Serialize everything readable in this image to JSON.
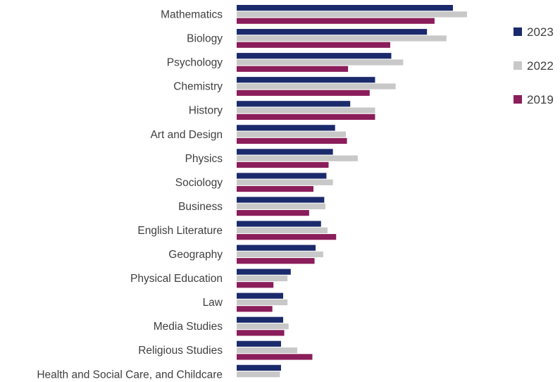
{
  "chart_data": {
    "type": "bar",
    "orientation": "horizontal",
    "title": "",
    "xlabel": "",
    "ylabel": "",
    "grid": false,
    "legend_position": "right",
    "categories": [
      "Mathematics",
      "Biology",
      "Psychology",
      "Chemistry",
      "History",
      "Art and Design",
      "Physics",
      "Sociology",
      "Business",
      "English Literature",
      "Geography",
      "Physical Education",
      "Law",
      "Media Studies",
      "Religious Studies",
      "Health and Social Care, and Childcare"
    ],
    "series": [
      {
        "name": "2023",
        "color": "#1b2a6b",
        "values": [
          100,
          88,
          71.5,
          64,
          52.5,
          45.5,
          44.5,
          41.5,
          40.5,
          39,
          36.5,
          25,
          21.5,
          21.5,
          20.5,
          20.5
        ]
      },
      {
        "name": "2022",
        "color": "#c8c8c8",
        "values": [
          106.5,
          97,
          77,
          73.5,
          64,
          50.5,
          56,
          44.5,
          41,
          42,
          40,
          23.5,
          23.5,
          24,
          28,
          20
        ]
      },
      {
        "name": "2019",
        "color": "#8b1d5b",
        "values": [
          91.5,
          71,
          51.5,
          61.5,
          64,
          51,
          42.5,
          35.5,
          33.5,
          46,
          36,
          17,
          16.5,
          22,
          35,
          0
        ]
      }
    ],
    "xlim": [
      0,
      120
    ]
  }
}
